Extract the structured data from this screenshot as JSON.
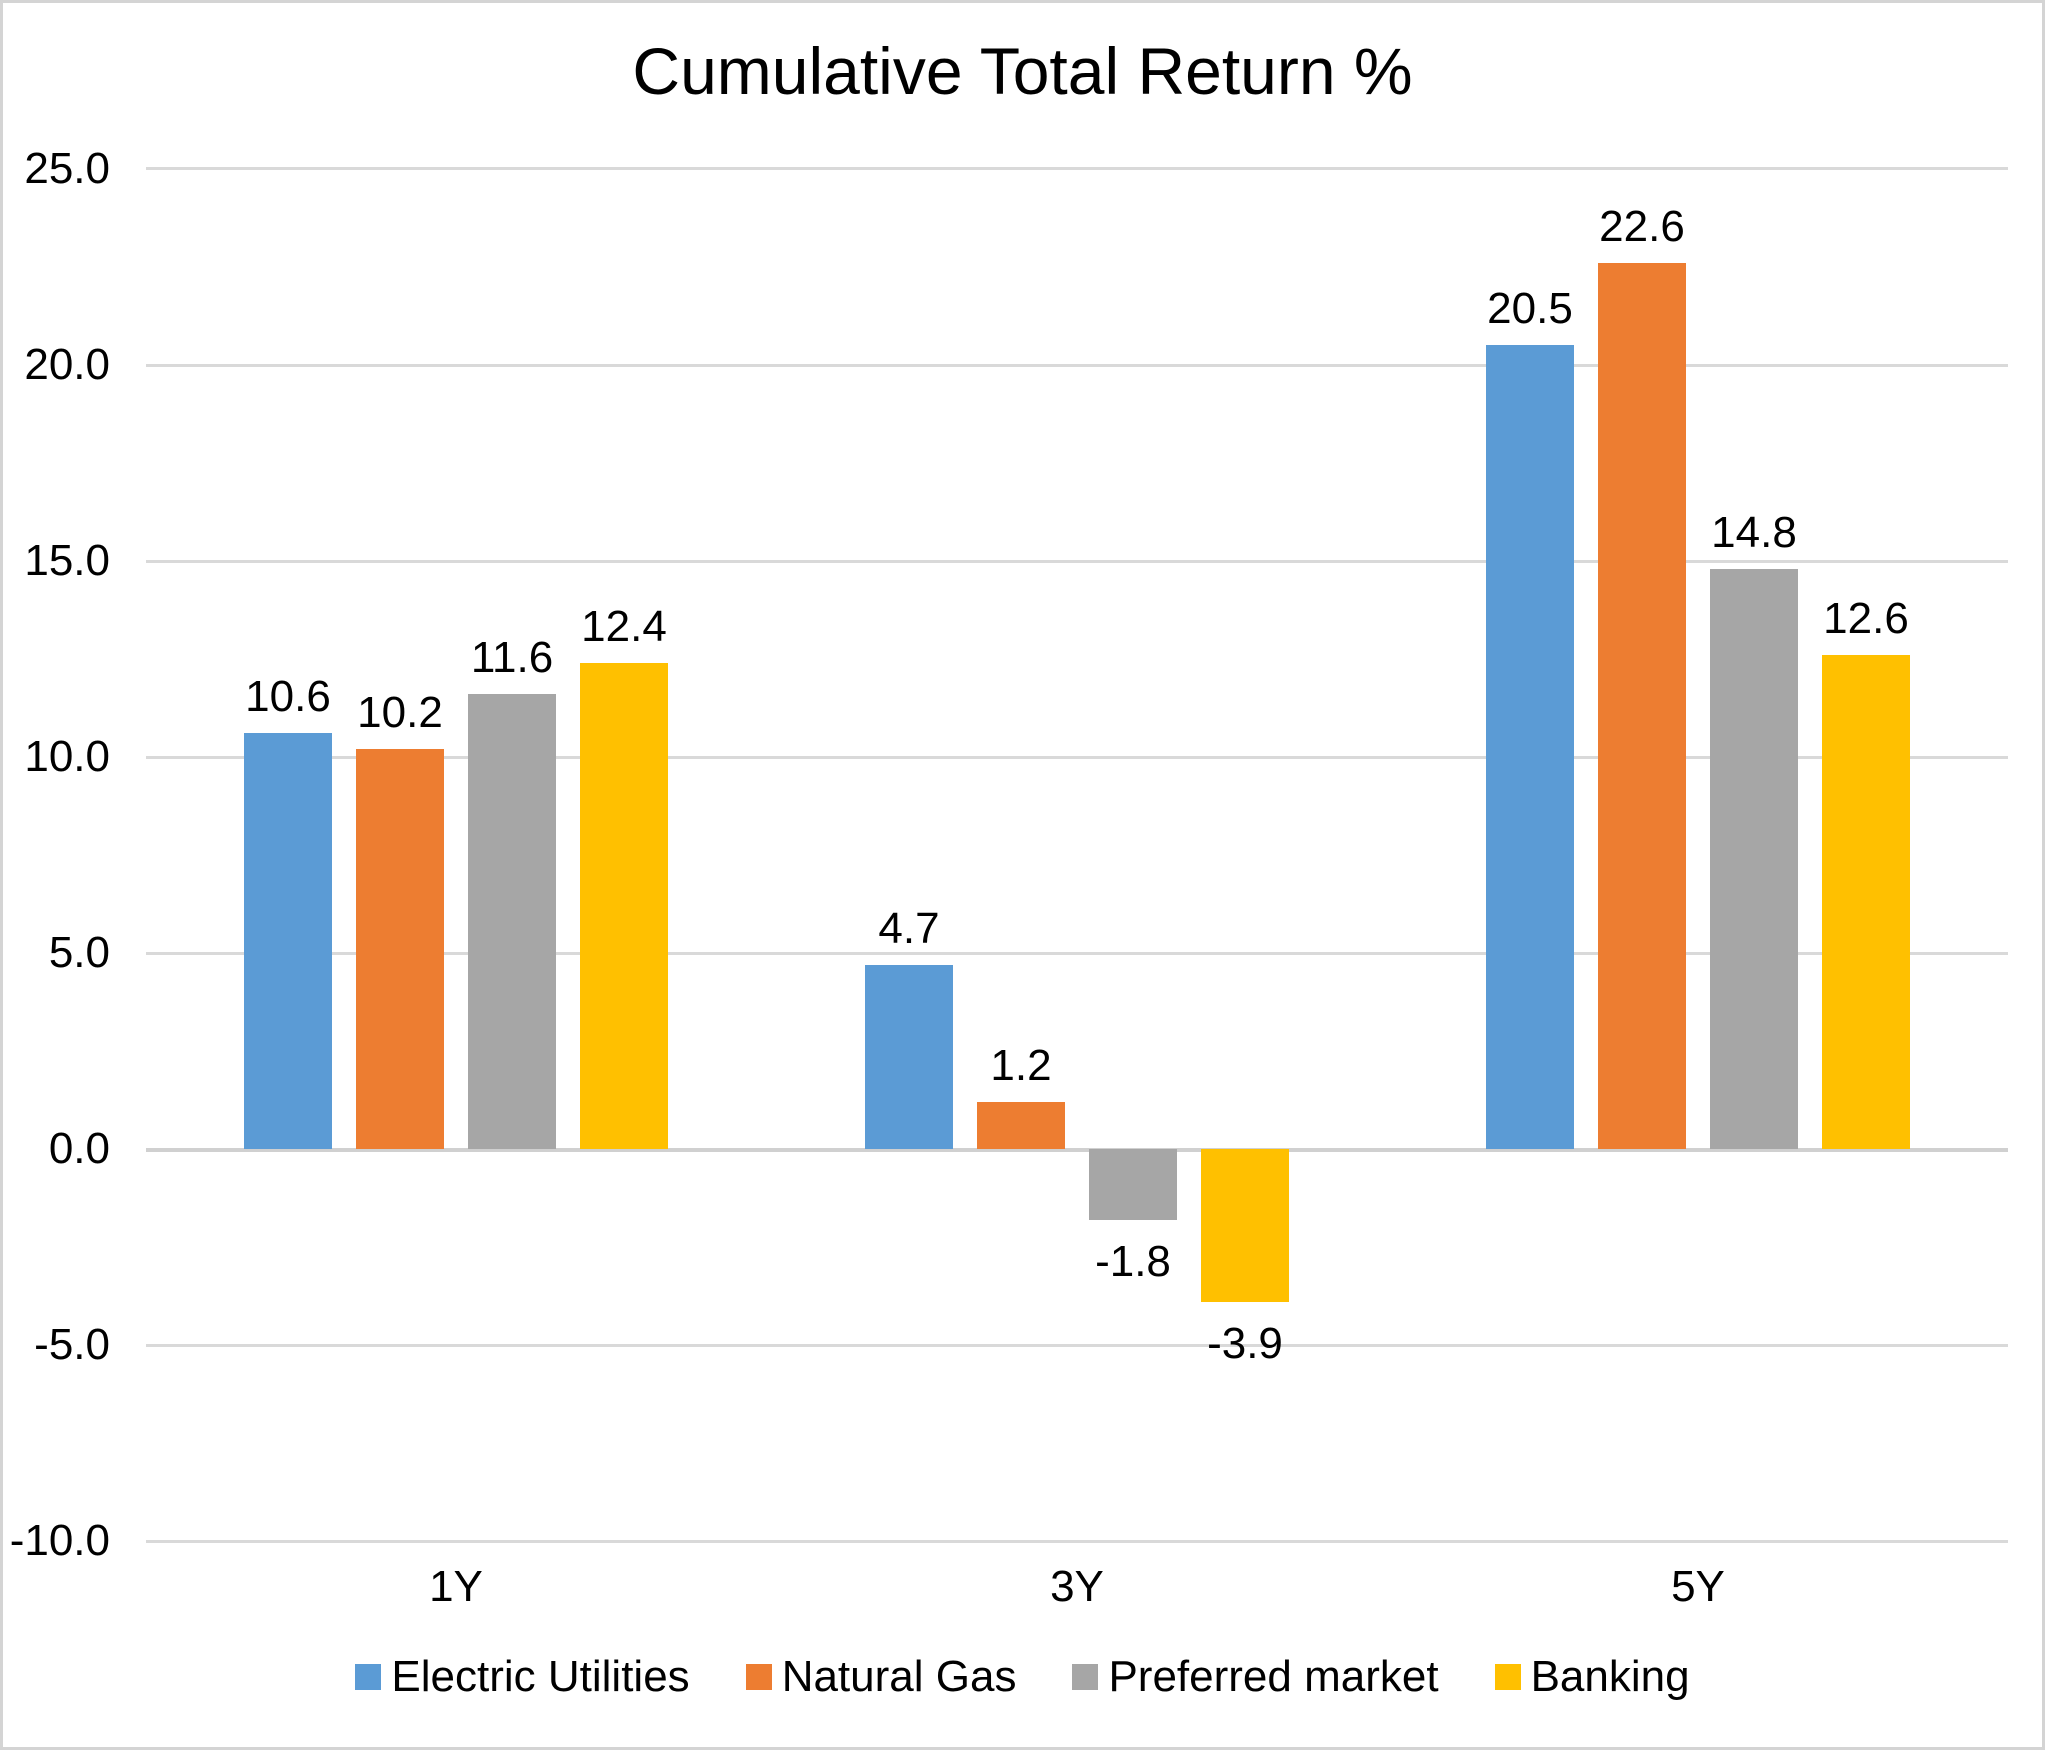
{
  "chart_data": {
    "type": "bar",
    "title": "Cumulative Total Return %",
    "categories": [
      "1Y",
      "3Y",
      "5Y"
    ],
    "series": [
      {
        "name": "Electric Utilities",
        "color": "#5B9BD5",
        "values": [
          10.6,
          4.7,
          20.5
        ],
        "labels": [
          "10.6",
          "4.7",
          "20.5"
        ]
      },
      {
        "name": "Natural Gas",
        "color": "#ED7D31",
        "values": [
          10.2,
          1.2,
          22.6
        ],
        "labels": [
          "10.2",
          "1.2",
          "22.6"
        ]
      },
      {
        "name": "Preferred market",
        "color": "#A6A6A6",
        "values": [
          11.6,
          -1.8,
          14.8
        ],
        "labels": [
          "11.6",
          "-1.8",
          "14.8"
        ]
      },
      {
        "name": "Banking",
        "color": "#FFC000",
        "values": [
          12.4,
          -3.9,
          12.6
        ],
        "labels": [
          "12.4",
          "-3.9",
          "12.6"
        ]
      }
    ],
    "xlabel": "",
    "ylabel": "",
    "ylim": [
      -10.0,
      25.0
    ],
    "ytick_step": 5.0,
    "yticks": [
      "25.0",
      "20.0",
      "15.0",
      "10.0",
      "5.0",
      "0.0",
      "-5.0",
      "-10.0"
    ],
    "grid": true,
    "gridline_color": "#D9D9D9",
    "axis_line_color": "#D0D0D0",
    "legend_position": "bottom",
    "frame_border_color": "#D4D4D4",
    "background_color": "#FFFFFF"
  }
}
